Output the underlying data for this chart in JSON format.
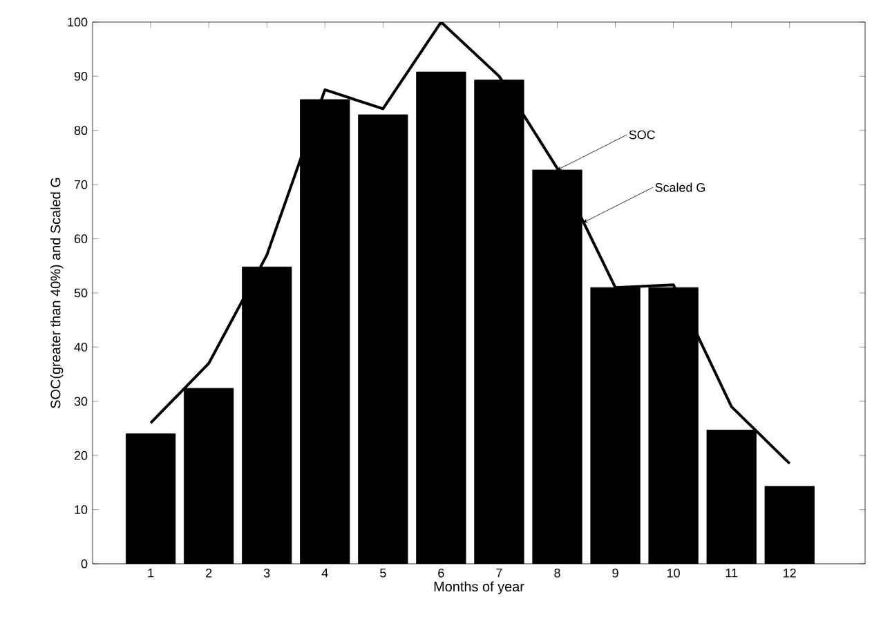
{
  "chart_data": {
    "type": "bar",
    "xlabel": "Months of year",
    "ylabel": "SOC(greater than 40%) and Scaled G",
    "x": [
      1,
      2,
      3,
      4,
      5,
      6,
      7,
      8,
      9,
      10,
      11,
      12
    ],
    "series": [
      {
        "color": "#000000",
        "values": [
          24,
          32.4,
          54.8,
          85.7,
          82.9,
          90.8,
          89.3,
          72.7,
          51,
          51,
          24.7,
          14.3
        ]
      },
      {
        "type": "line",
        "color": "#000000",
        "values": [
          26,
          37,
          57,
          87.5,
          84,
          100,
          90,
          73,
          51,
          51.5,
          29,
          18.5
        ]
      }
    ],
    "annotations": [
      {
        "text": "SOC",
        "x": 8,
        "y": 72.7
      },
      {
        "text": "Scaled G",
        "x": 8.45,
        "y": 63
      }
    ],
    "xlim": [
      0,
      13.3
    ],
    "ylim": [
      0,
      100
    ],
    "xticks": [
      1,
      2,
      3,
      4,
      5,
      6,
      7,
      8,
      9,
      10,
      11,
      12
    ],
    "yticks": [
      0,
      10,
      20,
      30,
      40,
      50,
      60,
      70,
      80,
      90,
      100
    ],
    "grid": false,
    "marker": "none",
    "line_style": "solid"
  }
}
